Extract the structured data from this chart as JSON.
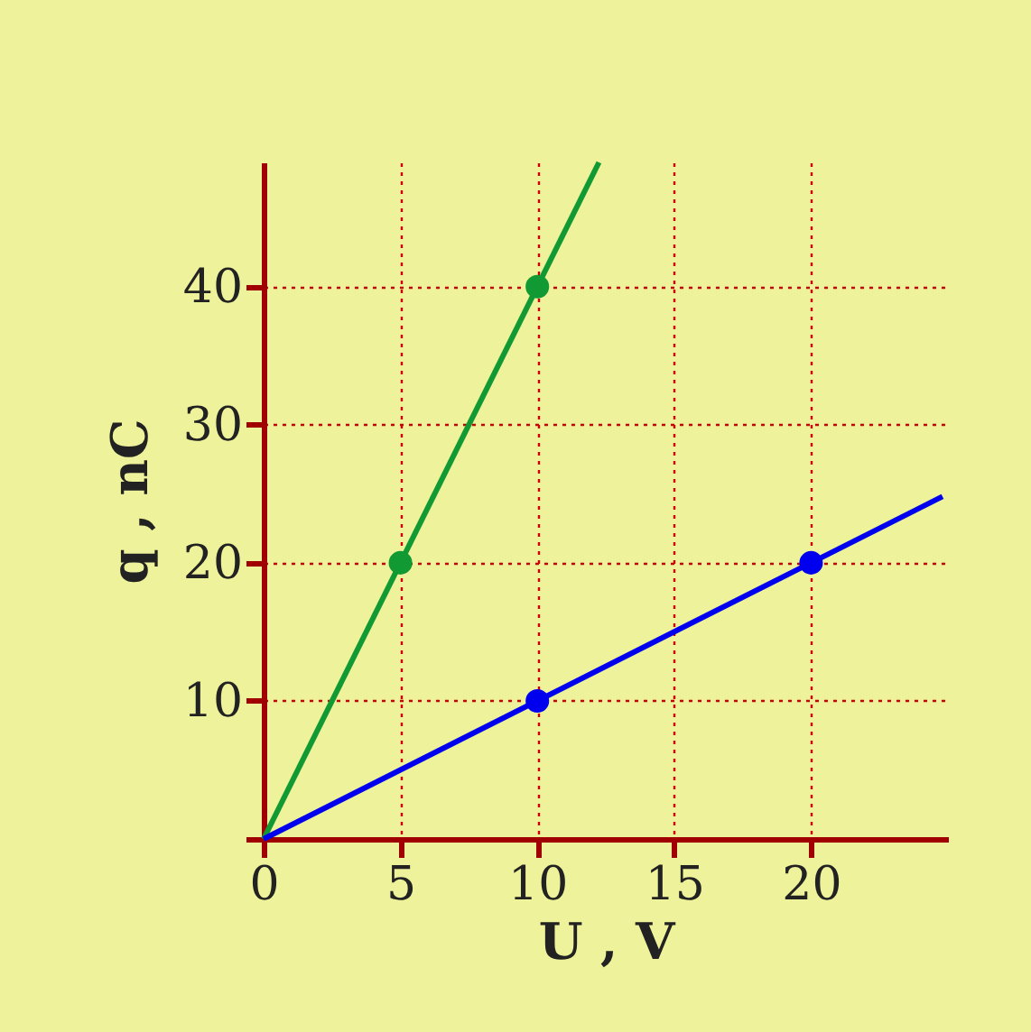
{
  "chart_data": {
    "type": "line",
    "xlabel": "U , V",
    "ylabel": "q , nC",
    "xlim": [
      0,
      25
    ],
    "ylim": [
      0,
      49
    ],
    "xticks": [
      0,
      5,
      10,
      15,
      20
    ],
    "yticks": [
      {
        "value": 0,
        "label": null
      },
      10,
      20,
      30,
      40
    ],
    "grid": true,
    "series": [
      {
        "color": "#119933",
        "x": [
          0,
          12.25
        ],
        "values": [
          0,
          49
        ],
        "marker": "none"
      },
      {
        "color": "#0000ee",
        "x": [
          0,
          24.8
        ],
        "values": [
          0,
          24.8
        ],
        "marker": "none"
      },
      {
        "color": "#119933",
        "x": [
          5,
          10
        ],
        "values": [
          20,
          40
        ],
        "type": "scatter",
        "marker": "circle"
      },
      {
        "color": "#0000ee",
        "x": [
          10,
          20
        ],
        "values": [
          10,
          20
        ],
        "type": "scatter",
        "marker": "circle"
      }
    ]
  }
}
